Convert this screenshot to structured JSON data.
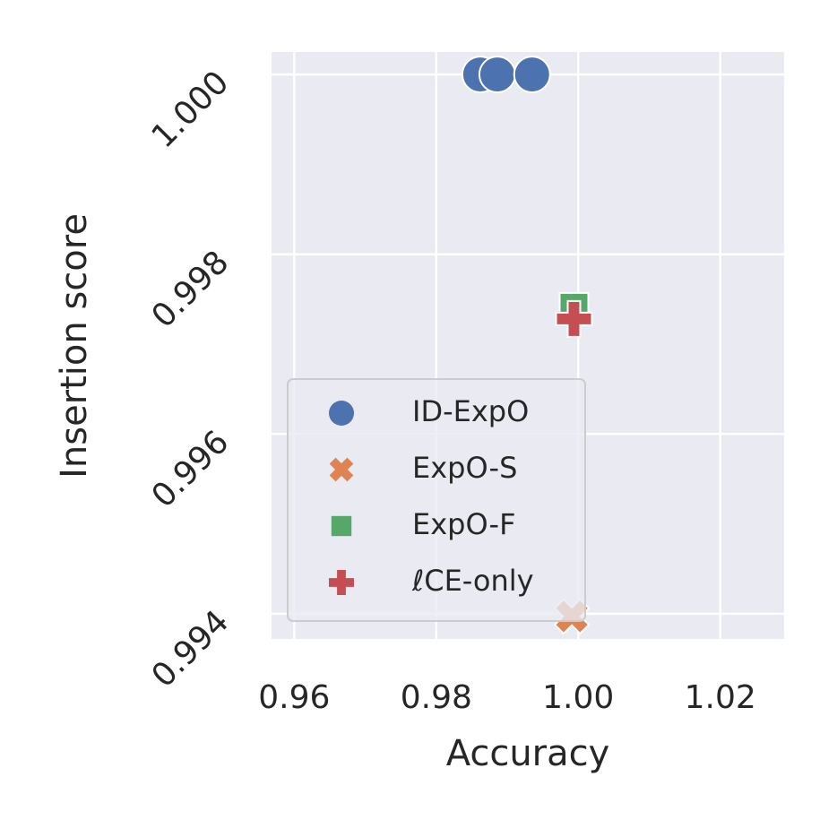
{
  "chart_data": {
    "type": "scatter",
    "xlabel": "Accuracy",
    "ylabel": "Insertion score",
    "xlim": [
      0.9568,
      1.029
    ],
    "ylim": [
      0.99372,
      1.00025
    ],
    "xticks": [
      0.96,
      0.98,
      {
        "value": 1.0,
        "label": "1.00"
      },
      1.02
    ],
    "yticks": [
      {
        "value": 1.0,
        "label": "1.000"
      },
      0.998,
      0.996,
      0.994
    ],
    "grid": true,
    "legend": "lower left",
    "series": [
      {
        "name": "ID-ExpO",
        "color": "#4c72b0",
        "marker": "circle",
        "x": [
          0.9862,
          0.9886,
          0.9935
        ],
        "values": [
          1.0,
          1.0,
          1.0
        ]
      },
      {
        "name": "ExpO-S",
        "color": "#dd8452",
        "marker": "x",
        "x": [
          0.9991
        ],
        "values": [
          0.99397
        ]
      },
      {
        "name": "ExpO-F",
        "color": "#55a868",
        "marker": "square",
        "x": [
          0.9994
        ],
        "values": [
          0.99741
        ]
      },
      {
        "name": "ℓCE-only",
        "color": "#c44e52",
        "marker": "plus",
        "x": [
          0.9994
        ],
        "values": [
          0.99728
        ]
      }
    ]
  }
}
